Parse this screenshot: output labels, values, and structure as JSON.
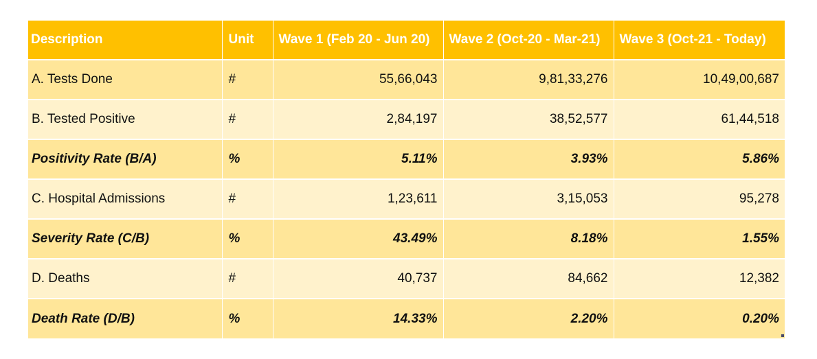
{
  "table": {
    "headers": [
      "Description",
      "Unit",
      "Wave 1 (Feb 20 - Jun 20)",
      "Wave 2 (Oct-20 - Mar-21)",
      "Wave 3 (Oct-21 - Today)"
    ],
    "rows": [
      {
        "description": "A. Tests Done",
        "unit": "#",
        "wave1": "55,66,043",
        "wave2": "9,81,33,276",
        "wave3": "10,49,00,687"
      },
      {
        "description": "B. Tested Positive",
        "unit": "#",
        "wave1": "2,84,197",
        "wave2": "38,52,577",
        "wave3": "61,44,518"
      },
      {
        "description": "Positivity Rate (B/A)",
        "unit": "%",
        "wave1": "5.11%",
        "wave2": "3.93%",
        "wave3": "5.86%"
      },
      {
        "description": "C. Hospital Admissions",
        "unit": "#",
        "wave1": "1,23,611",
        "wave2": "3,15,053",
        "wave3": "95,278"
      },
      {
        "description": "Severity Rate (C/B)",
        "unit": "%",
        "wave1": "43.49%",
        "wave2": "8.18%",
        "wave3": "1.55%"
      },
      {
        "description": "D. Deaths",
        "unit": "#",
        "wave1": "40,737",
        "wave2": "84,662",
        "wave3": "12,382"
      },
      {
        "description": "Death Rate (D/B)",
        "unit": "%",
        "wave1": "14.33%",
        "wave2": "2.20%",
        "wave3": "0.20%"
      }
    ]
  },
  "colors": {
    "header": "#ffc000",
    "row_dark": "#ffe699",
    "row_light": "#fff2cc"
  }
}
